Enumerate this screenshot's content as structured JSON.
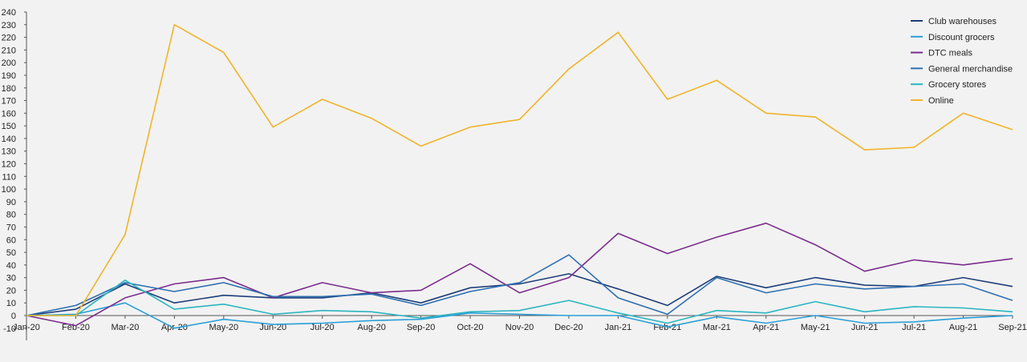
{
  "chart_data": {
    "type": "line",
    "title": "",
    "xlabel": "",
    "ylabel": "",
    "ylim": [
      -10,
      240
    ],
    "yticks": [
      -10,
      0,
      10,
      20,
      30,
      40,
      50,
      60,
      70,
      80,
      90,
      100,
      110,
      120,
      130,
      140,
      150,
      160,
      170,
      180,
      190,
      200,
      210,
      220,
      230,
      240
    ],
    "grid": false,
    "legend_position": "top-right",
    "categories": [
      "Jan-20",
      "Feb-20",
      "Mar-20",
      "Apr-20",
      "May-20",
      "Jun-20",
      "Jul-20",
      "Aug-20",
      "Sep-20",
      "Oct-20",
      "Nov-20",
      "Dec-20",
      "Jan-21",
      "Feb-21",
      "Mar-21",
      "Apr-21",
      "May-21",
      "Jun-21",
      "Jul-21",
      "Aug-21",
      "Sep-21"
    ],
    "series": [
      {
        "name": "Club warehouses",
        "color": "#1f3f7a",
        "values": [
          0,
          5,
          25,
          10,
          16,
          14,
          14,
          18,
          10,
          22,
          25,
          33,
          21,
          8,
          31,
          22,
          30,
          24,
          23,
          30,
          23
        ]
      },
      {
        "name": "Discount grocers",
        "color": "#2aa0d8",
        "values": [
          0,
          1,
          10,
          -10,
          -3,
          -7,
          -6,
          -4,
          -3,
          2,
          1,
          0,
          0,
          -9,
          -1,
          -6,
          0,
          -6,
          -5,
          -2,
          0
        ]
      },
      {
        "name": "DTC meals",
        "color": "#7a2e8c",
        "values": [
          0,
          -8,
          14,
          25,
          30,
          14,
          26,
          18,
          20,
          41,
          18,
          30,
          65,
          49,
          62,
          73,
          56,
          35,
          44,
          40,
          45
        ]
      },
      {
        "name": "General merchandise",
        "color": "#2e6fb0",
        "values": [
          0,
          8,
          26,
          19,
          26,
          15,
          15,
          17,
          8,
          19,
          26,
          48,
          14,
          1,
          30,
          18,
          25,
          21,
          23,
          25,
          12
        ]
      },
      {
        "name": "Grocery stores",
        "color": "#2bb5c0",
        "values": [
          0,
          0,
          28,
          5,
          9,
          1,
          4,
          3,
          -2,
          3,
          4,
          12,
          2,
          -6,
          4,
          2,
          11,
          3,
          7,
          6,
          3
        ]
      },
      {
        "name": "Online",
        "color": "#f0b429",
        "values": [
          0,
          0,
          64,
          230,
          208,
          149,
          171,
          156,
          134,
          149,
          155,
          195,
          224,
          171,
          186,
          160,
          157,
          131,
          133,
          160,
          147
        ]
      }
    ]
  }
}
